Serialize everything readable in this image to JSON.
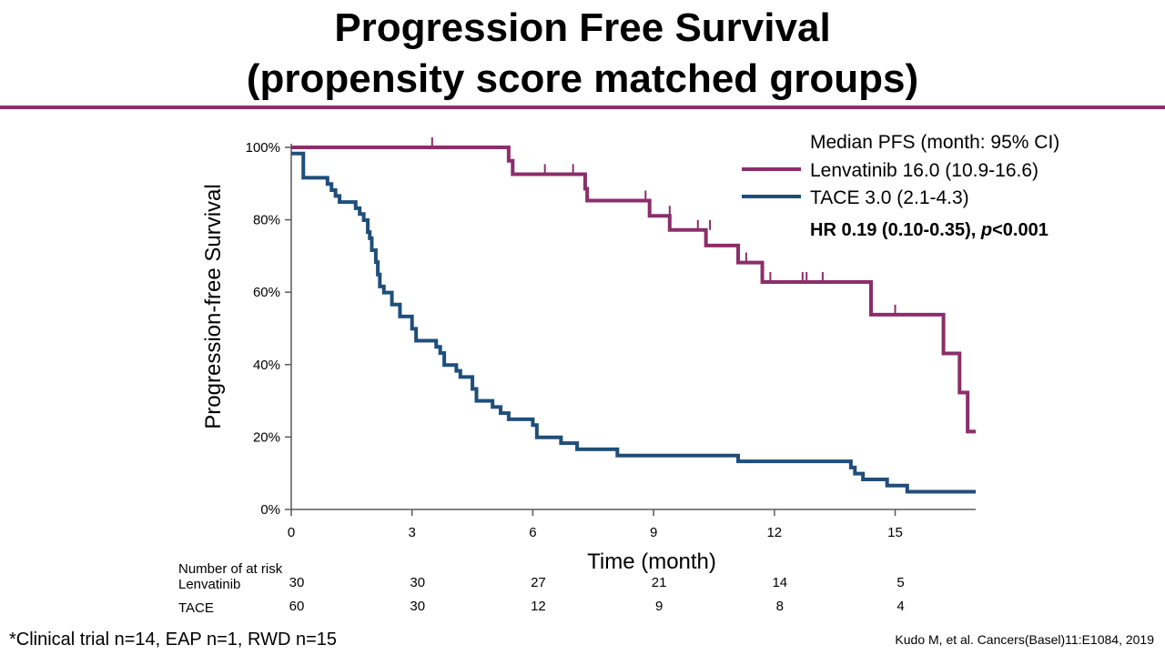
{
  "title_line1": "Progression Free Survival",
  "title_line2": "(propensity score matched groups)",
  "colors": {
    "lenvatinib": "#8b2e6b",
    "tace": "#1f4e7a",
    "axis": "#595959"
  },
  "chart_data": {
    "type": "line",
    "subtype": "kaplan-meier",
    "xlabel": "Time (month)",
    "ylabel": "Progression-free Survival",
    "xlim": [
      0,
      17
    ],
    "ylim": [
      0,
      100
    ],
    "xticks": [
      0,
      3,
      6,
      9,
      12,
      15
    ],
    "yticks": [
      0,
      20,
      40,
      60,
      80,
      100
    ],
    "ytick_labels": [
      "0%",
      "20%",
      "40%",
      "60%",
      "80%",
      "100%"
    ],
    "grid": false,
    "legend": {
      "placement": "top-right",
      "header": "Median PFS (month: 95% CI)",
      "entries": [
        "Lenvatinib 16.0 (10.9-16.6)",
        "TACE 3.0 (2.1-4.3)"
      ],
      "hr_text": "HR 0.19 (0.10-0.35), ",
      "p_label": "p",
      "p_value": "<0.001"
    },
    "series": [
      {
        "name": "Lenvatinib",
        "color": "#8b2e6b",
        "steps": [
          [
            0,
            100
          ],
          [
            5.4,
            96.3
          ],
          [
            5.5,
            92.6
          ],
          [
            7.3,
            88.6
          ],
          [
            7.35,
            85.3
          ],
          [
            8.9,
            81.1
          ],
          [
            9.4,
            77.2
          ],
          [
            10.3,
            72.9
          ],
          [
            11.1,
            68.2
          ],
          [
            11.7,
            62.8
          ],
          [
            14.4,
            53.8
          ],
          [
            16.2,
            43.1
          ],
          [
            16.6,
            32.3
          ],
          [
            16.8,
            21.5
          ],
          [
            17,
            21.5
          ]
        ],
        "censor": [
          [
            3.5,
            100
          ],
          [
            6.3,
            92.6
          ],
          [
            7.0,
            92.6
          ],
          [
            8.8,
            85.3
          ],
          [
            9.4,
            81.1
          ],
          [
            10.1,
            77.2
          ],
          [
            10.4,
            77.2
          ],
          [
            11.3,
            68.2
          ],
          [
            11.9,
            62.8
          ],
          [
            12.7,
            62.8
          ],
          [
            12.8,
            62.8
          ],
          [
            13.2,
            62.8
          ],
          [
            15.0,
            53.8
          ]
        ]
      },
      {
        "name": "TACE",
        "color": "#1f4e7a",
        "steps": [
          [
            0,
            98.3
          ],
          [
            0.3,
            91.6
          ],
          [
            0.9,
            89.9
          ],
          [
            1.0,
            88.2
          ],
          [
            1.1,
            86.6
          ],
          [
            1.2,
            84.9
          ],
          [
            1.6,
            83.2
          ],
          [
            1.7,
            81.6
          ],
          [
            1.8,
            79.9
          ],
          [
            1.9,
            76.6
          ],
          [
            1.95,
            74.9
          ],
          [
            2.0,
            71.6
          ],
          [
            2.1,
            68.3
          ],
          [
            2.15,
            64.9
          ],
          [
            2.2,
            61.6
          ],
          [
            2.3,
            59.9
          ],
          [
            2.5,
            56.6
          ],
          [
            2.7,
            53.3
          ],
          [
            3.0,
            49.9
          ],
          [
            3.1,
            46.6
          ],
          [
            3.6,
            44.9
          ],
          [
            3.7,
            43.2
          ],
          [
            3.8,
            39.9
          ],
          [
            4.1,
            38.3
          ],
          [
            4.2,
            36.6
          ],
          [
            4.5,
            33.3
          ],
          [
            4.6,
            30.0
          ],
          [
            5.0,
            28.3
          ],
          [
            5.2,
            26.6
          ],
          [
            5.4,
            24.9
          ],
          [
            6.0,
            23.3
          ],
          [
            6.1,
            19.9
          ],
          [
            6.7,
            18.3
          ],
          [
            7.1,
            16.6
          ],
          [
            8.1,
            14.9
          ],
          [
            11.1,
            13.3
          ],
          [
            13.9,
            11.6
          ],
          [
            14.0,
            9.9
          ],
          [
            14.2,
            8.3
          ],
          [
            14.8,
            6.6
          ],
          [
            15.3,
            4.9
          ],
          [
            17,
            4.9
          ]
        ],
        "censor": []
      }
    ],
    "at_risk": {
      "title": "Number of at risk",
      "times": [
        0,
        3,
        6,
        9,
        12,
        15
      ],
      "rows": [
        {
          "label": "Lenvatinib",
          "values": [
            "30",
            "30",
            "27",
            "21",
            "14",
            "5"
          ]
        },
        {
          "label": "TACE",
          "values": [
            "60",
            "30",
            "12",
            "9",
            "8",
            "4"
          ]
        }
      ]
    }
  },
  "footnote": "*Clinical trial n=14, EAP n=1, RWD n=15",
  "citation": "Kudo M, et al. Cancers(Basel)11:E1084, 2019"
}
